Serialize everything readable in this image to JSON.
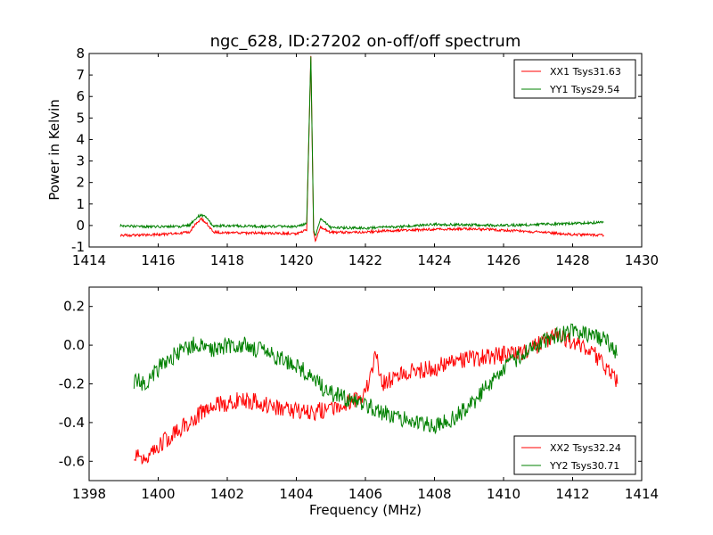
{
  "chart_data": [
    {
      "type": "line",
      "title": "ngc_628, ID:27202 on-off/off spectrum",
      "xlabel": "",
      "ylabel": "Power in Kelvin",
      "xlim": [
        1414,
        1430
      ],
      "ylim": [
        -1,
        8
      ],
      "xticks": [
        1414,
        1416,
        1418,
        1420,
        1422,
        1424,
        1426,
        1428,
        1430
      ],
      "yticks": [
        -1,
        0,
        1,
        2,
        3,
        4,
        5,
        6,
        7,
        8
      ],
      "legend_position": "upper right",
      "grid": false,
      "series": [
        {
          "name": "XX1 Tsys31.63",
          "color": "#ff0000",
          "x": [
            1414.9,
            1415.5,
            1416.0,
            1416.5,
            1416.9,
            1417.1,
            1417.25,
            1417.4,
            1417.6,
            1418.0,
            1419.0,
            1420.0,
            1420.3,
            1420.42,
            1420.5,
            1420.55,
            1420.7,
            1421.0,
            1422.0,
            1423.0,
            1424.0,
            1425.0,
            1426.0,
            1427.0,
            1428.0,
            1428.9
          ],
          "y": [
            -0.45,
            -0.45,
            -0.42,
            -0.38,
            -0.3,
            0.1,
            0.3,
            0.1,
            -0.3,
            -0.35,
            -0.35,
            -0.38,
            -0.2,
            7.9,
            -0.3,
            -0.7,
            -0.1,
            -0.32,
            -0.3,
            -0.22,
            -0.18,
            -0.15,
            -0.22,
            -0.3,
            -0.42,
            -0.45
          ]
        },
        {
          "name": "YY1 Tsys29.54",
          "color": "#008000",
          "x": [
            1414.9,
            1415.5,
            1416.0,
            1416.5,
            1416.9,
            1417.1,
            1417.25,
            1417.4,
            1417.6,
            1418.0,
            1419.0,
            1420.0,
            1420.3,
            1420.42,
            1420.5,
            1420.55,
            1420.7,
            1421.0,
            1422.0,
            1423.0,
            1424.0,
            1425.0,
            1426.0,
            1427.0,
            1428.0,
            1428.9
          ],
          "y": [
            0.0,
            -0.05,
            -0.05,
            -0.05,
            0.0,
            0.35,
            0.5,
            0.35,
            -0.05,
            0.0,
            -0.05,
            -0.05,
            0.1,
            7.9,
            -0.2,
            -0.5,
            0.35,
            -0.1,
            -0.12,
            -0.05,
            0.05,
            0.03,
            0.0,
            0.05,
            0.1,
            0.15
          ]
        }
      ]
    },
    {
      "type": "line",
      "title": "",
      "xlabel": "Frequency (MHz)",
      "ylabel": "",
      "xlim": [
        1398,
        1414
      ],
      "ylim": [
        -0.7,
        0.3
      ],
      "xticks": [
        1398,
        1400,
        1402,
        1404,
        1406,
        1408,
        1410,
        1412,
        1414
      ],
      "yticks": [
        -0.6,
        -0.4,
        -0.2,
        0.0,
        0.2
      ],
      "legend_position": "lower right",
      "grid": false,
      "series": [
        {
          "name": "XX2 Tsys32.24",
          "color": "#ff0000",
          "x": [
            1399.3,
            1399.6,
            1400.0,
            1400.5,
            1401.0,
            1401.5,
            1402.0,
            1402.5,
            1403.0,
            1403.5,
            1404.0,
            1404.5,
            1405.0,
            1405.5,
            1406.0,
            1406.3,
            1406.5,
            1407.0,
            1407.5,
            1408.0,
            1408.5,
            1409.0,
            1409.5,
            1410.0,
            1410.5,
            1411.0,
            1411.5,
            1412.0,
            1412.5,
            1413.0,
            1413.3
          ],
          "y": [
            -0.55,
            -0.58,
            -0.52,
            -0.45,
            -0.38,
            -0.32,
            -0.3,
            -0.28,
            -0.3,
            -0.32,
            -0.34,
            -0.35,
            -0.32,
            -0.3,
            -0.25,
            -0.05,
            -0.2,
            -0.15,
            -0.13,
            -0.12,
            -0.08,
            -0.07,
            -0.06,
            -0.05,
            -0.05,
            0.0,
            0.05,
            0.02,
            -0.02,
            -0.12,
            -0.2
          ]
        },
        {
          "name": "YY2 Tsys30.71",
          "color": "#008000",
          "x": [
            1399.3,
            1399.6,
            1400.0,
            1400.5,
            1401.0,
            1401.5,
            1402.0,
            1402.5,
            1403.0,
            1403.5,
            1404.0,
            1404.5,
            1405.0,
            1405.5,
            1406.0,
            1406.5,
            1407.0,
            1407.5,
            1408.0,
            1408.5,
            1409.0,
            1409.5,
            1410.0,
            1410.5,
            1411.0,
            1411.5,
            1412.0,
            1412.5,
            1413.0,
            1413.3
          ],
          "y": [
            -0.18,
            -0.2,
            -0.12,
            -0.05,
            0.0,
            -0.02,
            0.0,
            0.0,
            -0.03,
            -0.07,
            -0.1,
            -0.18,
            -0.25,
            -0.28,
            -0.3,
            -0.35,
            -0.38,
            -0.4,
            -0.42,
            -0.38,
            -0.32,
            -0.22,
            -0.12,
            -0.05,
            0.0,
            0.05,
            0.07,
            0.05,
            0.02,
            -0.05
          ]
        }
      ]
    }
  ]
}
